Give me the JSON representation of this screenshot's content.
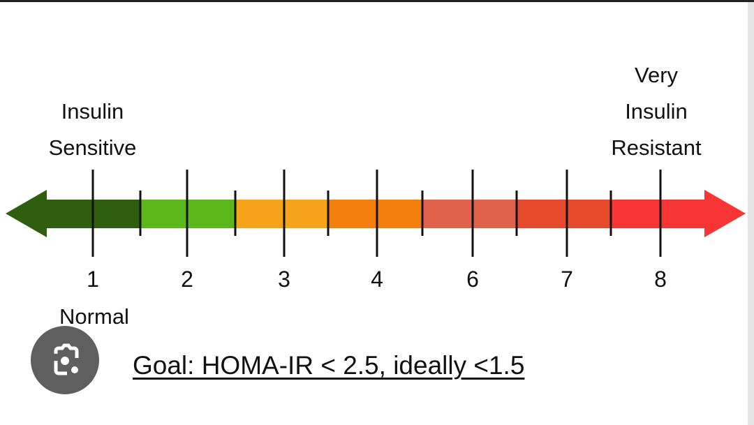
{
  "labels": {
    "left": [
      "Insulin",
      "Sensitive"
    ],
    "right": [
      "Very",
      "Insulin",
      "Resistant"
    ],
    "normal": "Normal"
  },
  "scale": {
    "tick_labels": [
      "1",
      "2",
      "3",
      "4",
      "6",
      "7",
      "8"
    ],
    "segment_colors": [
      "#2f5f0e",
      "#5cb81a",
      "#f5a318",
      "#f57f0c",
      "#e0624a",
      "#e64a2a",
      "#f83535"
    ]
  },
  "goal": "Goal: HOMA-IR < 2.5, ideally <1.5",
  "lens_button": {
    "icon": "google-lens-icon"
  }
}
